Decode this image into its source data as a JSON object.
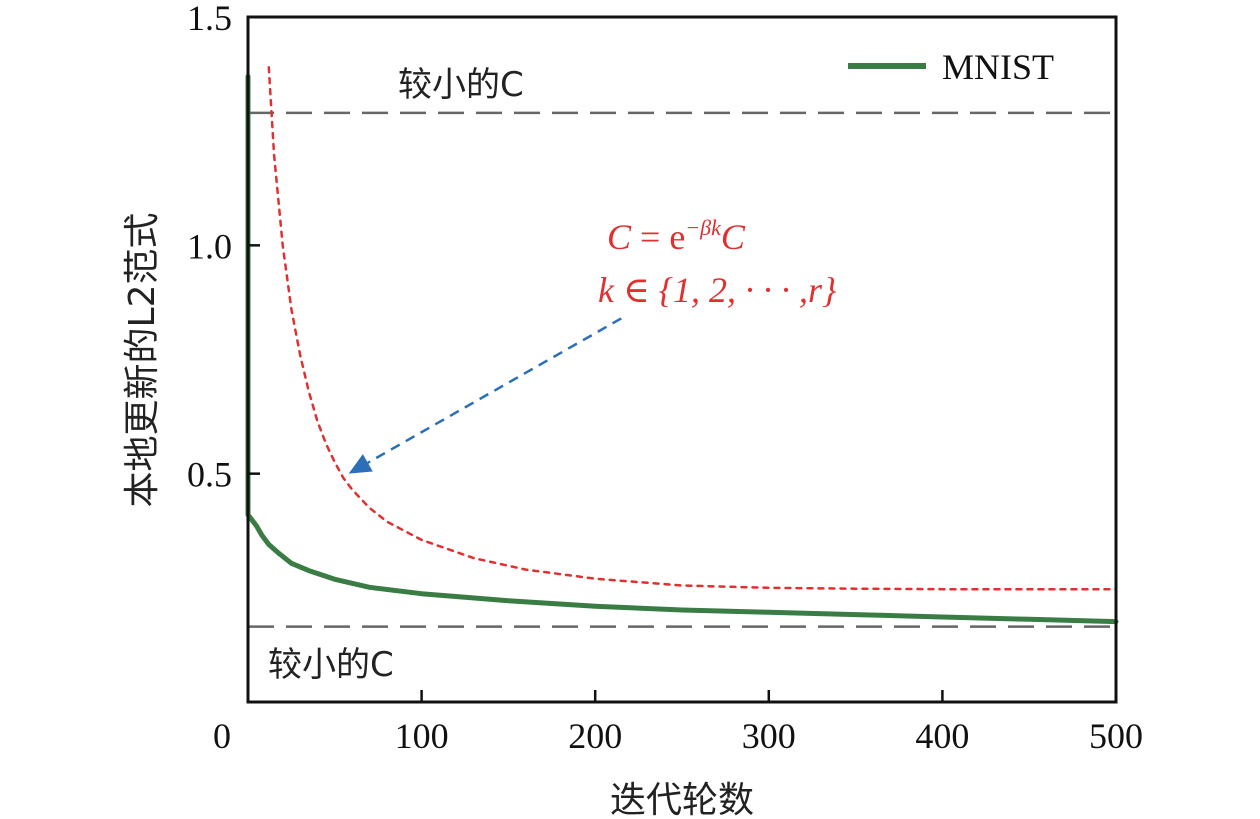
{
  "chart_data": {
    "type": "line",
    "xlabel": "迭代轮数",
    "ylabel": "本地更新的L2范式",
    "xlim": [
      0,
      500
    ],
    "ylim": [
      0.0,
      1.5
    ],
    "xticks": [
      0,
      100,
      200,
      300,
      400,
      500
    ],
    "yticks": [
      0.5,
      1.0,
      1.5
    ],
    "xtick_labels": [
      "0",
      "100",
      "200",
      "300",
      "400",
      "500"
    ],
    "ytick_labels": [
      "0.5",
      "1.0",
      "1.5"
    ],
    "legend": {
      "position": "top-right",
      "entries": [
        "MNIST"
      ]
    },
    "series": [
      {
        "name": "MNIST",
        "color": "#3a7d44",
        "style": "solid",
        "x": [
          0,
          0,
          2,
          5,
          8,
          12,
          18,
          25,
          35,
          50,
          70,
          100,
          150,
          200,
          250,
          300,
          350,
          400,
          450,
          500
        ],
        "y": [
          1.37,
          0.41,
          0.4,
          0.385,
          0.365,
          0.345,
          0.325,
          0.305,
          0.29,
          0.27,
          0.255,
          0.24,
          0.225,
          0.213,
          0.205,
          0.2,
          0.195,
          0.19,
          0.185,
          0.18
        ]
      },
      {
        "color": "#e03030",
        "style": "dotted",
        "x": [
          12,
          15,
          20,
          25,
          30,
          35,
          40,
          45,
          50,
          55,
          60,
          70,
          80,
          100,
          130,
          160,
          200,
          250,
          300,
          350,
          400,
          450,
          500
        ],
        "y": [
          1.39,
          1.2,
          1.0,
          0.86,
          0.76,
          0.68,
          0.615,
          0.565,
          0.525,
          0.49,
          0.465,
          0.425,
          0.395,
          0.355,
          0.315,
          0.29,
          0.27,
          0.255,
          0.25,
          0.248,
          0.247,
          0.247,
          0.247
        ]
      }
    ],
    "reference_lines": [
      {
        "y": 1.29,
        "color": "#666666",
        "style": "dashed",
        "label": "较小的C"
      },
      {
        "y": 0.165,
        "color": "#666666",
        "style": "dashed",
        "label": "较小的C"
      }
    ],
    "annotations": {
      "formula_line1": {
        "lhs": "C",
        "eq": " = e",
        "sup": "−βk",
        "rhs": "C"
      },
      "formula_line2": "k ∈ {1, 2, · · · ,r}",
      "arrow": {
        "from": [
          215,
          0.84
        ],
        "to": [
          58,
          0.5
        ],
        "color": "#2a6fb8"
      }
    }
  }
}
